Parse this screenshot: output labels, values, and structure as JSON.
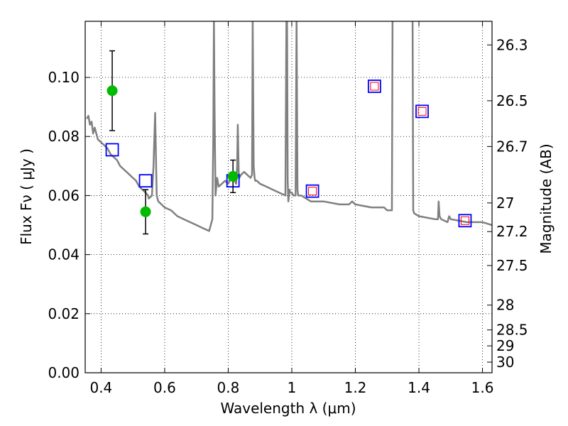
{
  "chart_data": {
    "type": "scatter",
    "xlabel": "Wavelength  λ (μm)",
    "ylabel_left": "Flux  Fν  ( μJy )",
    "ylabel_right": "Magnitude (AB)",
    "xlim": [
      0.35,
      1.63
    ],
    "ylim": [
      0.0,
      0.119
    ],
    "grid": true,
    "xticks": [
      0.4,
      0.6,
      0.8,
      1.0,
      1.2,
      1.4,
      1.6
    ],
    "xtick_labels": [
      "0.4",
      "0.6",
      "0.8",
      "1",
      "1.2",
      "1.4",
      "1.6"
    ],
    "yticks": [
      0.0,
      0.02,
      0.04,
      0.06,
      0.08,
      0.1
    ],
    "ytick_labels": [
      "0.00",
      "0.02",
      "0.04",
      "0.06",
      "0.08",
      "0.10"
    ],
    "right_ticks": [
      {
        "flux": 0.111,
        "label": "26.3"
      },
      {
        "flux": 0.0921,
        "label": "26.5"
      },
      {
        "flux": 0.0766,
        "label": "26.7"
      },
      {
        "flux": 0.0575,
        "label": "27"
      },
      {
        "flux": 0.0478,
        "label": "27.2"
      },
      {
        "flux": 0.0363,
        "label": "27.5"
      },
      {
        "flux": 0.0229,
        "label": "28"
      },
      {
        "flux": 0.0145,
        "label": "28.5"
      },
      {
        "flux": 0.0091,
        "label": "29"
      },
      {
        "flux": 0.0036,
        "label": "30"
      }
    ],
    "series": [
      {
        "style": "line",
        "color": "#808080",
        "x": [
          0.355,
          0.36,
          0.365,
          0.37,
          0.375,
          0.38,
          0.39,
          0.4,
          0.41,
          0.42,
          0.43,
          0.44,
          0.45,
          0.46,
          0.47,
          0.48,
          0.49,
          0.5,
          0.51,
          0.52,
          0.53,
          0.54,
          0.548,
          0.55,
          0.56,
          0.565,
          0.57,
          0.575,
          0.58,
          0.6,
          0.62,
          0.64,
          0.66,
          0.68,
          0.7,
          0.72,
          0.74,
          0.75,
          0.753,
          0.755,
          0.757,
          0.76,
          0.765,
          0.77,
          0.78,
          0.79,
          0.8,
          0.81,
          0.82,
          0.825,
          0.828,
          0.83,
          0.833,
          0.835,
          0.84,
          0.85,
          0.86,
          0.87,
          0.875,
          0.877,
          0.88,
          0.883,
          0.885,
          0.89,
          0.9,
          0.92,
          0.94,
          0.96,
          0.98,
          0.983,
          0.985,
          0.987,
          0.989,
          0.99,
          0.993,
          0.995,
          1.0,
          1.005,
          1.01,
          1.012,
          1.015,
          1.018,
          1.02,
          1.03,
          1.06,
          1.1,
          1.15,
          1.18,
          1.19,
          1.2,
          1.25,
          1.28,
          1.29,
          1.3,
          1.31,
          1.315,
          1.317,
          1.32,
          1.33,
          1.37,
          1.38,
          1.382,
          1.385,
          1.4,
          1.45,
          1.46,
          1.462,
          1.465,
          1.47,
          1.49,
          1.495,
          1.5,
          1.55,
          1.6,
          1.63
        ],
        "y": [
          0.086,
          0.087,
          0.084,
          0.085,
          0.081,
          0.083,
          0.079,
          0.078,
          0.077,
          0.076,
          0.074,
          0.073,
          0.072,
          0.07,
          0.069,
          0.068,
          0.067,
          0.066,
          0.065,
          0.063,
          0.062,
          0.061,
          0.06,
          0.059,
          0.06,
          0.07,
          0.088,
          0.06,
          0.058,
          0.056,
          0.055,
          0.053,
          0.052,
          0.051,
          0.05,
          0.049,
          0.048,
          0.052,
          0.08,
          0.12,
          0.09,
          0.06,
          0.066,
          0.063,
          0.064,
          0.065,
          0.064,
          0.066,
          0.065,
          0.064,
          0.07,
          0.084,
          0.068,
          0.066,
          0.067,
          0.068,
          0.067,
          0.066,
          0.067,
          0.12,
          0.07,
          0.066,
          0.065,
          0.065,
          0.064,
          0.063,
          0.062,
          0.061,
          0.06,
          0.12,
          0.12,
          0.065,
          0.058,
          0.059,
          0.062,
          0.061,
          0.061,
          0.06,
          0.06,
          0.06,
          0.12,
          0.062,
          0.06,
          0.06,
          0.058,
          0.058,
          0.057,
          0.057,
          0.058,
          0.057,
          0.056,
          0.056,
          0.056,
          0.055,
          0.055,
          0.055,
          0.12,
          0.12,
          0.12,
          0.12,
          0.12,
          0.055,
          0.054,
          0.053,
          0.052,
          0.052,
          0.058,
          0.053,
          0.052,
          0.051,
          0.053,
          0.052,
          0.051,
          0.051,
          0.05
        ]
      },
      {
        "style": "open-square",
        "color": "#0000ff",
        "x": [
          0.435,
          0.54,
          0.815,
          1.065,
          1.26,
          1.41,
          1.545
        ],
        "y": [
          0.0755,
          0.065,
          0.065,
          0.0615,
          0.097,
          0.0885,
          0.0515
        ]
      },
      {
        "style": "small-open-square",
        "color": "#ff0000",
        "x": [
          1.065,
          1.26,
          1.41,
          1.545
        ],
        "y": [
          0.0615,
          0.097,
          0.0885,
          0.0515
        ]
      },
      {
        "style": "point-errorbar",
        "color": "#00bb00",
        "x": [
          0.435,
          0.54,
          0.815
        ],
        "y": [
          0.0955,
          0.0545,
          0.0665
        ],
        "yerr": [
          0.0135,
          0.0075,
          0.0055
        ]
      }
    ]
  }
}
